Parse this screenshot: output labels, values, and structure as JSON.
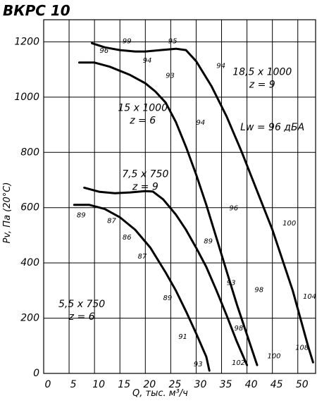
{
  "chart_data": {
    "type": "line",
    "title": "ВКРС 10",
    "xlabel": "Q, тыс. м³/ч",
    "ylabel": "Pv, Па (20°C)",
    "xlim": [
      0,
      53.5
    ],
    "ylim": [
      0,
      1280
    ],
    "x_ticks": [
      0,
      5,
      10,
      15,
      20,
      25,
      30,
      35,
      40,
      45,
      50
    ],
    "y_ticks": [
      0,
      200,
      400,
      600,
      800,
      1000,
      1200
    ],
    "grid": true,
    "annotations": [
      {
        "lines": [
          "18,5 x 1000",
          "z = 9"
        ],
        "x": 43,
        "y": 1080
      },
      {
        "lines": [
          "15 x 1000",
          "z = 6"
        ],
        "x": 19.5,
        "y": 950
      },
      {
        "lines": [
          "Lw = 96 дБА"
        ],
        "x": 45,
        "y": 880
      },
      {
        "lines": [
          "7,5 x 750",
          "z = 9"
        ],
        "x": 20,
        "y": 710
      },
      {
        "lines": [
          "5,5 x 750",
          "z = 6"
        ],
        "x": 7.5,
        "y": 240
      }
    ],
    "series": [
      {
        "points": [
          [
            9.5,
            1195
          ],
          [
            12,
            1180
          ],
          [
            15,
            1170
          ],
          [
            18,
            1165
          ],
          [
            20,
            1165
          ],
          [
            23,
            1170
          ],
          [
            26,
            1175
          ],
          [
            28,
            1170
          ],
          [
            30,
            1130
          ],
          [
            33,
            1040
          ],
          [
            36,
            930
          ],
          [
            39,
            800
          ],
          [
            42,
            660
          ],
          [
            45,
            520
          ],
          [
            47,
            410
          ],
          [
            49,
            300
          ],
          [
            50.5,
            200
          ],
          [
            52,
            100
          ],
          [
            53,
            40
          ]
        ],
        "labels": [
          {
            "text": "99",
            "x": 15.5,
            "y": 1195
          },
          {
            "text": "95",
            "x": 24.5,
            "y": 1195
          },
          {
            "text": "94",
            "x": 34,
            "y": 1105
          },
          {
            "text": "100",
            "x": 47,
            "y": 535
          },
          {
            "text": "104",
            "x": 51,
            "y": 270
          },
          {
            "text": "108",
            "x": 49.5,
            "y": 85
          }
        ]
      },
      {
        "points": [
          [
            7,
            1125
          ],
          [
            10,
            1125
          ],
          [
            13,
            1110
          ],
          [
            17,
            1080
          ],
          [
            20,
            1050
          ],
          [
            22,
            1020
          ],
          [
            24,
            980
          ],
          [
            26,
            910
          ],
          [
            28,
            820
          ],
          [
            30,
            720
          ],
          [
            32,
            610
          ],
          [
            34,
            490
          ],
          [
            36,
            370
          ],
          [
            38,
            250
          ],
          [
            40,
            140
          ],
          [
            42,
            30
          ]
        ],
        "labels": [
          {
            "text": "96",
            "x": 11,
            "y": 1160
          },
          {
            "text": "94",
            "x": 19.5,
            "y": 1125
          },
          {
            "text": "93",
            "x": 24,
            "y": 1070
          },
          {
            "text": "94",
            "x": 30,
            "y": 900
          },
          {
            "text": "96",
            "x": 36.5,
            "y": 590
          },
          {
            "text": "98",
            "x": 41.5,
            "y": 295
          },
          {
            "text": "100",
            "x": 44,
            "y": 55
          }
        ]
      },
      {
        "points": [
          [
            8,
            672
          ],
          [
            11,
            657
          ],
          [
            14,
            652
          ],
          [
            17,
            655
          ],
          [
            20,
            660
          ],
          [
            21.5,
            658
          ],
          [
            23.5,
            630
          ],
          [
            26,
            575
          ],
          [
            28,
            520
          ],
          [
            30,
            455
          ],
          [
            32,
            385
          ],
          [
            34,
            300
          ],
          [
            36,
            210
          ],
          [
            38,
            115
          ],
          [
            40,
            30
          ]
        ],
        "labels": [
          {
            "text": "89",
            "x": 31.5,
            "y": 470
          },
          {
            "text": "93",
            "x": 36,
            "y": 320
          },
          {
            "text": "98",
            "x": 37.5,
            "y": 155
          },
          {
            "text": "102",
            "x": 37,
            "y": 30
          }
        ]
      },
      {
        "points": [
          [
            6,
            610
          ],
          [
            9,
            610
          ],
          [
            12,
            595
          ],
          [
            15,
            565
          ],
          [
            18,
            520
          ],
          [
            21,
            455
          ],
          [
            24,
            365
          ],
          [
            26,
            300
          ],
          [
            28,
            225
          ],
          [
            30,
            145
          ],
          [
            32,
            60
          ],
          [
            32.6,
            10
          ]
        ],
        "labels": [
          {
            "text": "89",
            "x": 6.5,
            "y": 565
          },
          {
            "text": "87",
            "x": 12.5,
            "y": 545
          },
          {
            "text": "86",
            "x": 15.5,
            "y": 485
          },
          {
            "text": "87",
            "x": 18.5,
            "y": 415
          },
          {
            "text": "89",
            "x": 23.5,
            "y": 265
          },
          {
            "text": "91",
            "x": 26.5,
            "y": 125
          },
          {
            "text": "93",
            "x": 29.5,
            "y": 25
          }
        ]
      }
    ]
  }
}
